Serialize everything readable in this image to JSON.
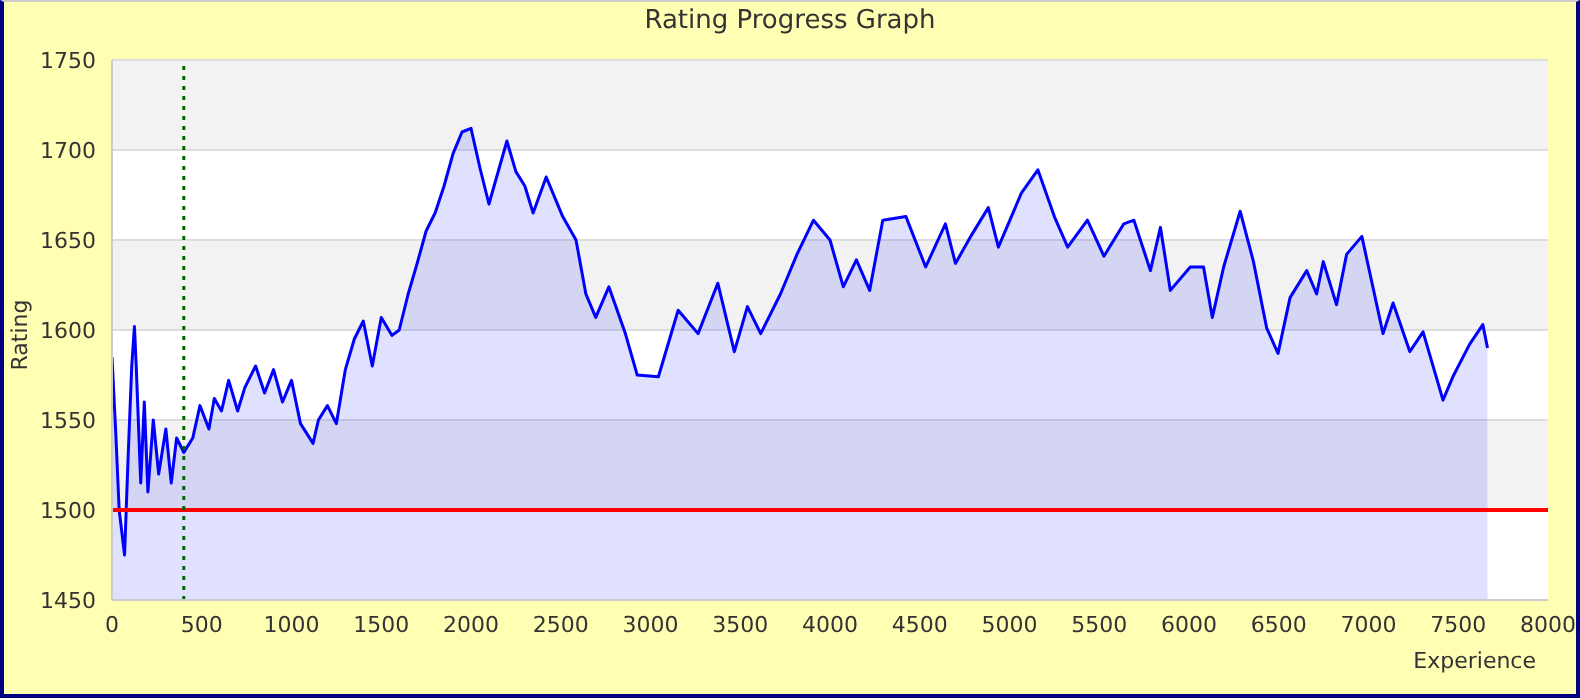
{
  "chart_data": {
    "type": "area",
    "title": "Rating Progress Graph",
    "xlabel": "Experience",
    "ylabel": "Rating",
    "x": [
      0,
      20,
      40,
      70,
      90,
      110,
      125,
      135,
      160,
      180,
      200,
      230,
      260,
      300,
      330,
      360,
      400,
      450,
      490,
      540,
      570,
      610,
      650,
      700,
      740,
      800,
      850,
      900,
      950,
      1000,
      1050,
      1120,
      1150,
      1200,
      1250,
      1300,
      1350,
      1400,
      1450,
      1500,
      1560,
      1600,
      1650,
      1700,
      1750,
      1800,
      1850,
      1900,
      1950,
      2000,
      2050,
      2100,
      2200,
      2250,
      2300,
      2346,
      2419,
      2511,
      2585,
      2640,
      2695,
      2768,
      2860,
      2926,
      3044,
      3154,
      3265,
      3375,
      3467,
      3540,
      3614,
      3724,
      3816,
      3908,
      4000,
      4074,
      4147,
      4221,
      4294,
      4423,
      4533,
      4643,
      4699,
      4790,
      4882,
      4938,
      5066,
      5158,
      5250,
      5324,
      5434,
      5526,
      5637,
      5693,
      5785,
      5841,
      5896,
      6007,
      6081,
      6130,
      6193,
      6285,
      6359,
      6433,
      6496,
      6563,
      6656,
      6711,
      6748,
      6822,
      6878,
      6963,
      7081,
      7137,
      7230,
      7304,
      7415,
      7470,
      7563,
      7637,
      7663
    ],
    "series": [
      {
        "color": "#0000ff",
        "values": [
          1585,
          1545,
          1500,
          1475,
          1530,
          1580,
          1602,
          1580,
          1515,
          1560,
          1510,
          1550,
          1520,
          1545,
          1515,
          1540,
          1532,
          1540,
          1558,
          1545,
          1562,
          1555,
          1572,
          1555,
          1568,
          1580,
          1565,
          1578,
          1560,
          1572,
          1548,
          1537,
          1550,
          1558,
          1548,
          1578,
          1595,
          1605,
          1580,
          1607,
          1597,
          1600,
          1620,
          1637,
          1655,
          1665,
          1680,
          1698,
          1710,
          1712,
          1690,
          1670,
          1705,
          1688,
          1680,
          1665,
          1685,
          1663,
          1650,
          1620,
          1607,
          1624,
          1598,
          1575,
          1574,
          1611,
          1598,
          1626,
          1588,
          1613,
          1598,
          1620,
          1642,
          1661,
          1650,
          1624,
          1639,
          1622,
          1661,
          1663,
          1635,
          1659,
          1637,
          1653,
          1668,
          1646,
          1676,
          1689,
          1663,
          1646,
          1661,
          1641,
          1659,
          1661,
          1633,
          1657,
          1622,
          1635,
          1635,
          1607,
          1635,
          1666,
          1638,
          1601,
          1587,
          1618,
          1633,
          1620,
          1638,
          1614,
          1642,
          1652,
          1598,
          1615,
          1588,
          1599,
          1561,
          1574,
          1592,
          1603,
          1590
        ]
      }
    ],
    "xlim": [
      0,
      8000
    ],
    "xticks": [
      0,
      500,
      1000,
      1500,
      2000,
      2500,
      3000,
      3500,
      4000,
      4500,
      5000,
      5500,
      6000,
      6500,
      7000,
      7500,
      8000
    ],
    "ylim": [
      1450,
      1750
    ],
    "yticks": [
      1450,
      1500,
      1550,
      1600,
      1650,
      1700,
      1750
    ],
    "grid": "y",
    "ref_lines": [
      {
        "axis": "y",
        "value": 1500,
        "color": "#ff0000",
        "line_style": "solid"
      },
      {
        "axis": "x",
        "value": 400,
        "color": "#006600",
        "line_style": "dotted"
      }
    ]
  }
}
